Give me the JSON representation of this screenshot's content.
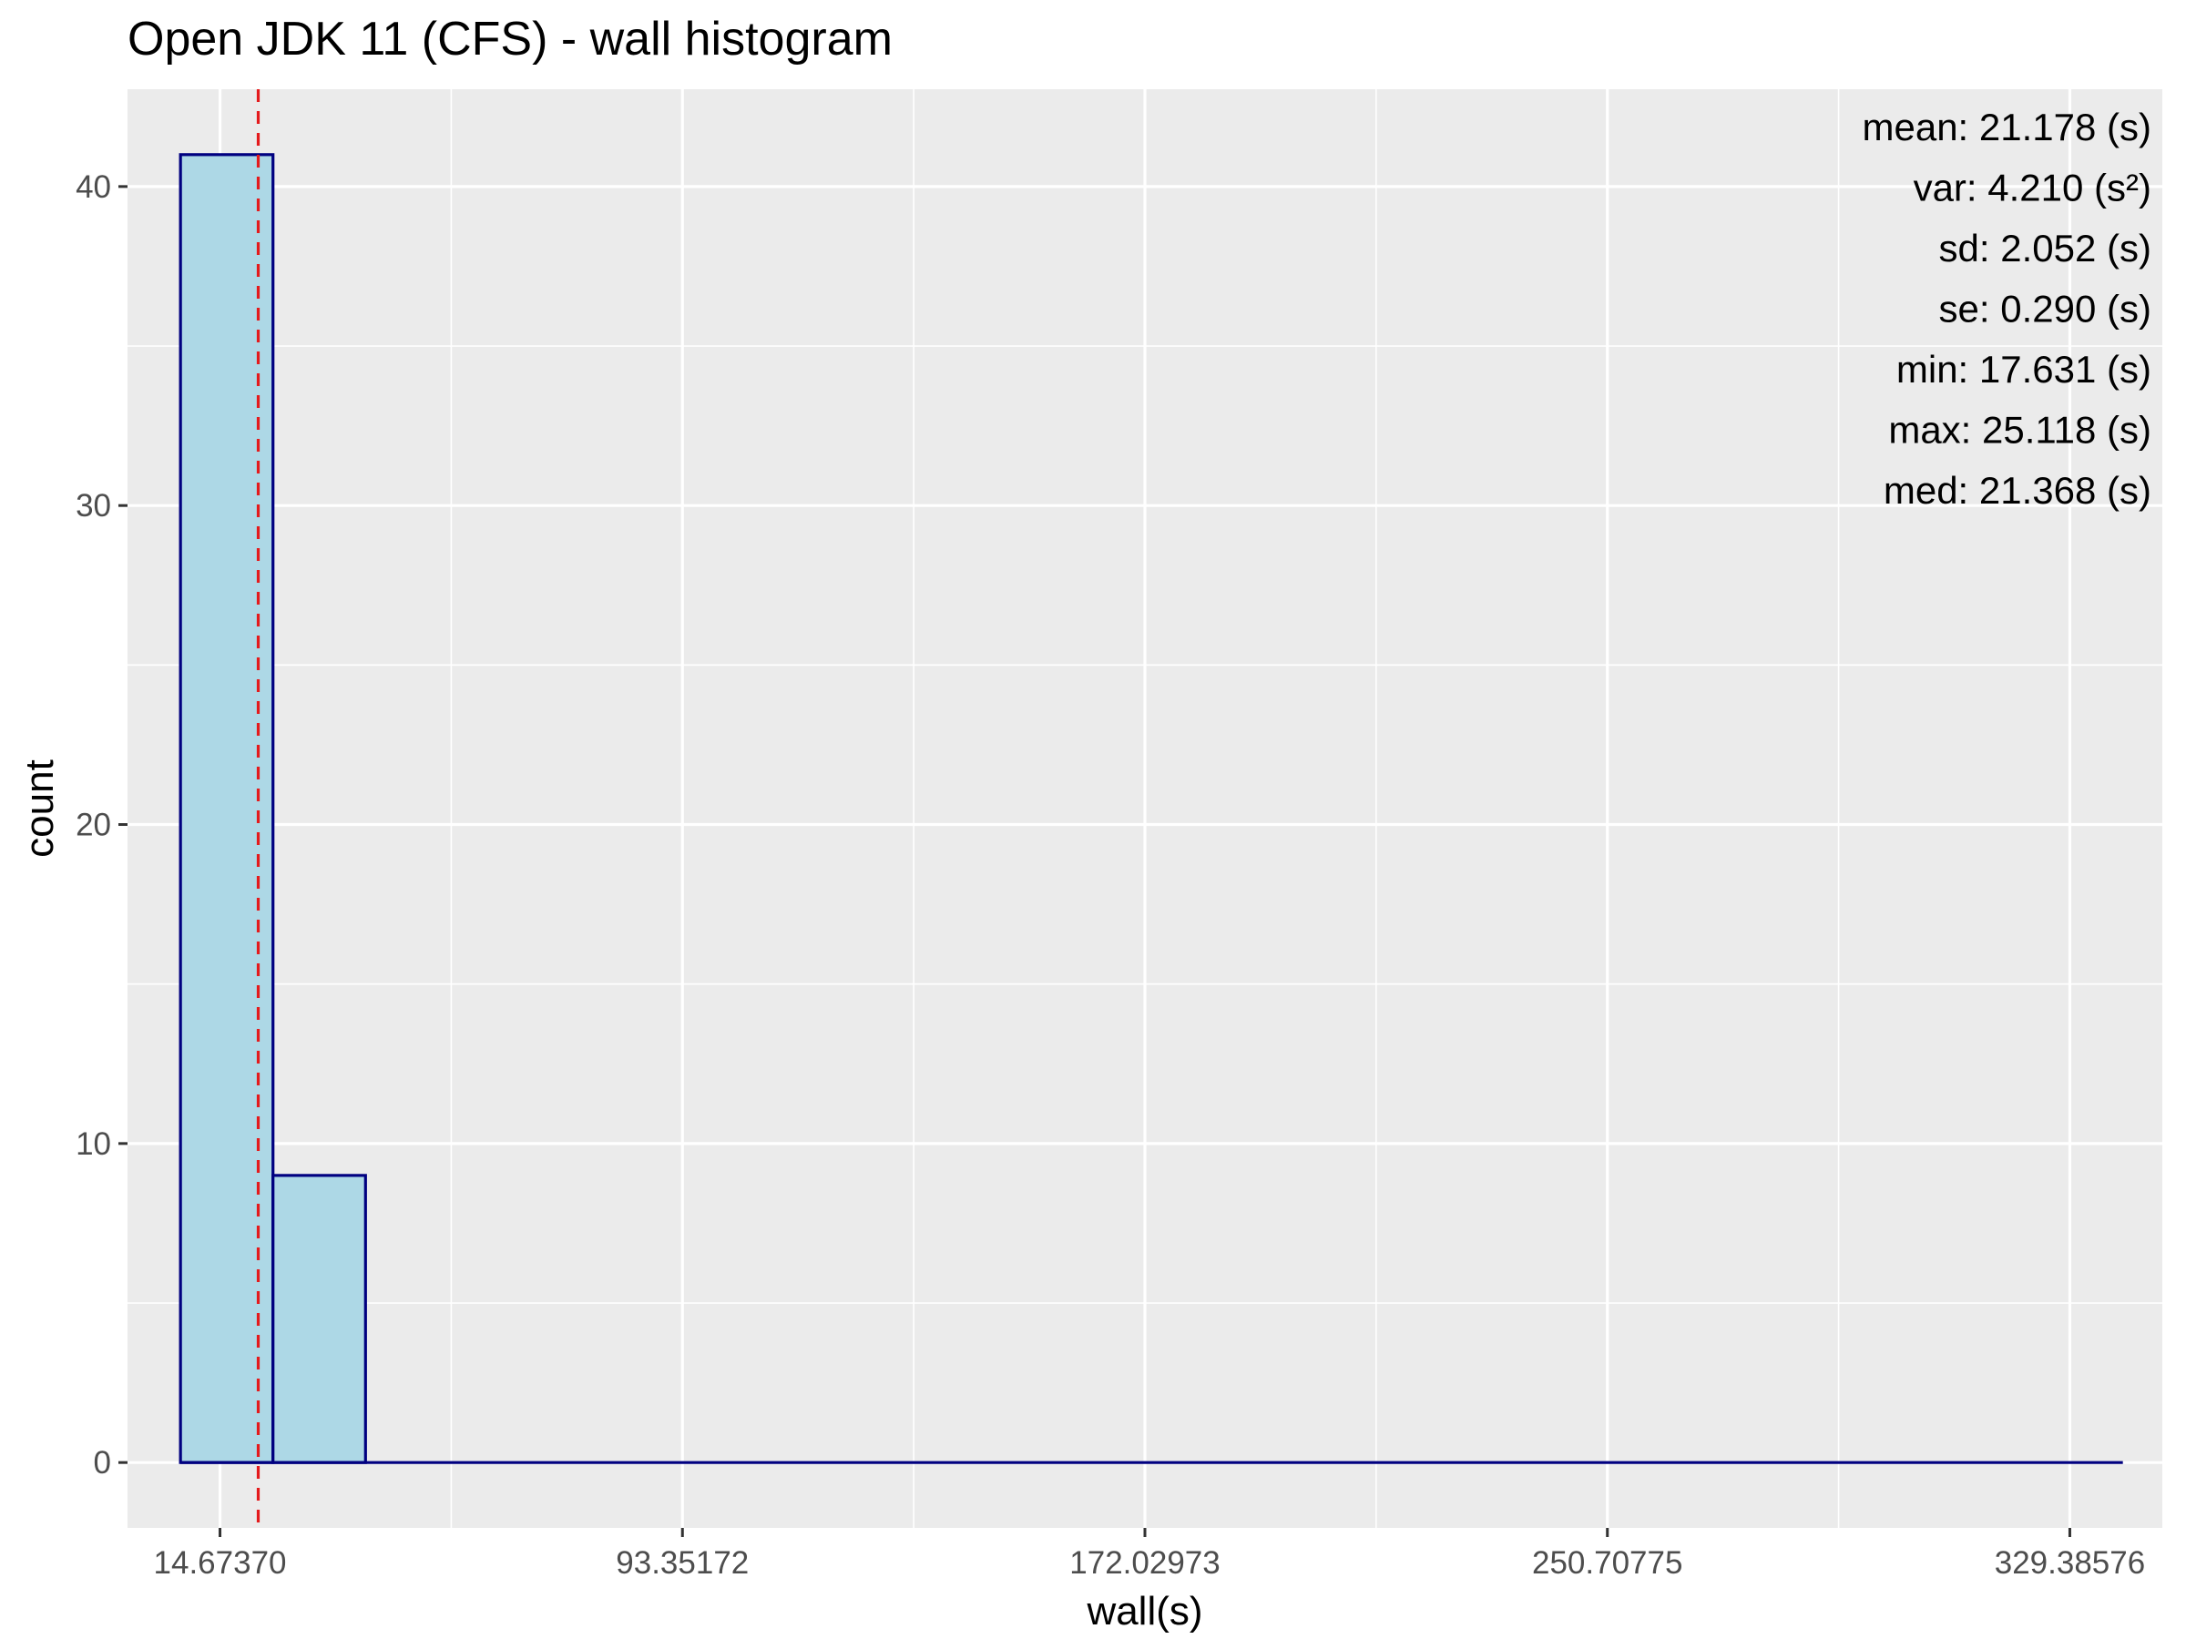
{
  "chart_data": {
    "type": "bar",
    "title": "Open JDK 11 (CFS) - wall histogram",
    "xlabel": "wall(s)",
    "ylabel": "count",
    "x_ticks": [
      14.6737,
      93.35172,
      172.02973,
      250.70775,
      329.38576
    ],
    "x_tick_labels": [
      "14.67370",
      "93.35172",
      "172.02973",
      "250.70775",
      "329.38576"
    ],
    "y_ticks": [
      0,
      10,
      20,
      30,
      40
    ],
    "y_tick_labels": [
      "0",
      "10",
      "20",
      "30",
      "40"
    ],
    "xlim": [
      -1.06,
      345.12
    ],
    "ylim": [
      -2.05,
      43.05
    ],
    "bins": [
      {
        "x0": 7.95,
        "x1": 23.69,
        "count": 41
      },
      {
        "x0": 23.69,
        "x1": 39.43,
        "count": 9
      },
      {
        "x0": 39.43,
        "x1": 55.16,
        "count": 0
      },
      {
        "x0": 55.16,
        "x1": 70.9,
        "count": 0
      },
      {
        "x0": 70.9,
        "x1": 86.63,
        "count": 0
      },
      {
        "x0": 86.63,
        "x1": 102.37,
        "count": 0
      },
      {
        "x0": 102.37,
        "x1": 118.11,
        "count": 0
      },
      {
        "x0": 118.11,
        "x1": 133.84,
        "count": 0
      },
      {
        "x0": 133.84,
        "x1": 149.58,
        "count": 0
      },
      {
        "x0": 149.58,
        "x1": 165.31,
        "count": 0
      },
      {
        "x0": 165.31,
        "x1": 181.05,
        "count": 0
      },
      {
        "x0": 181.05,
        "x1": 196.79,
        "count": 0
      },
      {
        "x0": 196.79,
        "x1": 212.52,
        "count": 0
      },
      {
        "x0": 212.52,
        "x1": 228.26,
        "count": 0
      },
      {
        "x0": 228.26,
        "x1": 243.99,
        "count": 0
      },
      {
        "x0": 243.99,
        "x1": 259.73,
        "count": 0
      },
      {
        "x0": 259.73,
        "x1": 275.47,
        "count": 0
      },
      {
        "x0": 275.47,
        "x1": 291.2,
        "count": 0
      },
      {
        "x0": 291.2,
        "x1": 306.94,
        "count": 0
      },
      {
        "x0": 306.94,
        "x1": 322.67,
        "count": 0
      },
      {
        "x0": 322.67,
        "x1": 338.41,
        "count": 0
      }
    ],
    "mean_line": 21.178,
    "stats": [
      "mean: 21.178 (s)",
      "var: 4.210 (s²)",
      "sd: 2.052 (s)",
      "se: 0.290 (s)",
      "min: 17.631 (s)",
      "max: 25.118 (s)",
      "med: 21.368 (s)"
    ],
    "grid": true,
    "colors": {
      "panel": "#ebebeb",
      "grid": "#ffffff",
      "bar_fill": "#add8e6",
      "bar_outline": "#000080",
      "mean_line": "#e41a1c"
    }
  }
}
